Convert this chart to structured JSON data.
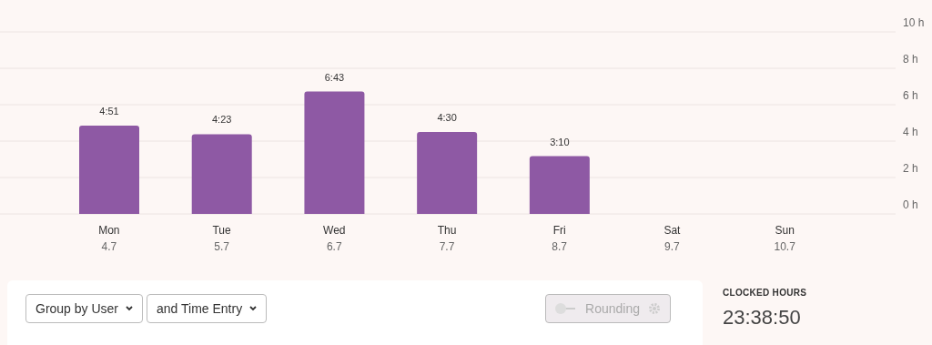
{
  "chart_data": {
    "type": "bar",
    "categories": [
      "Mon\n4.7",
      "Tue\n5.7",
      "Wed\n6.7",
      "Thu\n7.7",
      "Fri\n8.7",
      "Sat\n9.7",
      "Sun\n10.7"
    ],
    "values": [
      4.85,
      4.38,
      6.72,
      4.5,
      3.17,
      0,
      0
    ],
    "value_labels": [
      "4:51",
      "4:23",
      "6:43",
      "4:30",
      "3:10",
      null,
      null
    ],
    "color": "#8e59a4",
    "ylim": [
      0,
      10
    ],
    "yticks": [
      {
        "value": 0,
        "label": "0 h"
      },
      {
        "value": 2,
        "label": "2 h"
      },
      {
        "value": 4,
        "label": "4 h"
      },
      {
        "value": 6,
        "label": "6 h"
      },
      {
        "value": 8,
        "label": "8 h"
      },
      {
        "value": 10,
        "label": "10 h"
      }
    ],
    "grid": "y",
    "annotations": [
      "Group by User",
      "and Time Entry",
      "Rounding",
      "CLOCKED HOURS",
      "23:38:50"
    ]
  }
}
